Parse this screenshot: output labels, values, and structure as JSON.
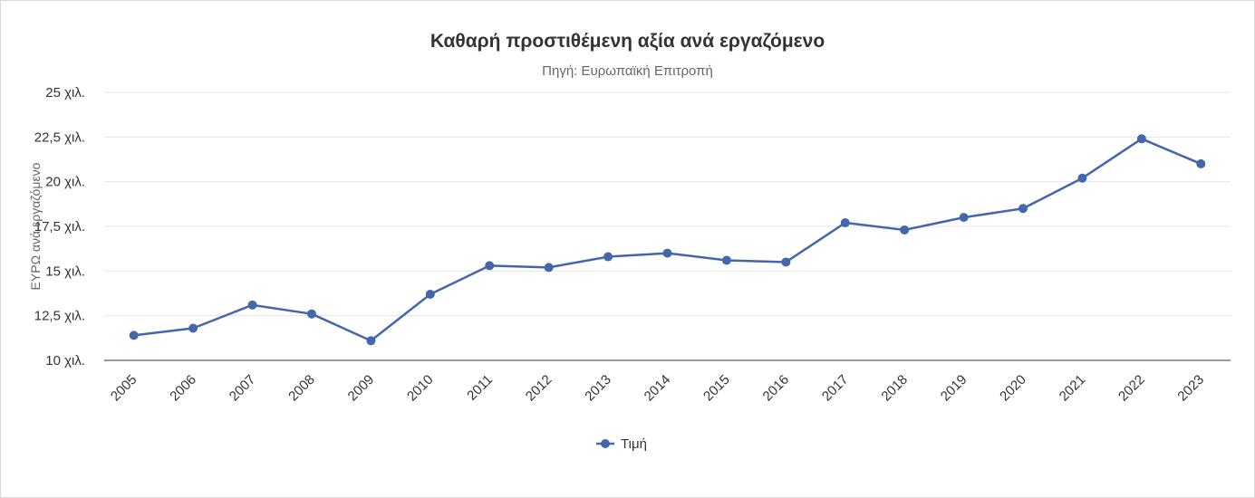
{
  "chart_data": {
    "type": "line",
    "title": "Καθαρή προστιθέμενη αξία ανά εργαζόμενο",
    "subtitle": "Πηγή: Ευρωπαϊκή Επιτροπή",
    "ylabel": "ΕΥΡΩ ανά εργαζόμενο",
    "xlabel": "",
    "categories": [
      "2005",
      "2006",
      "2007",
      "2008",
      "2009",
      "2010",
      "2011",
      "2012",
      "2013",
      "2014",
      "2015",
      "2016",
      "2017",
      "2018",
      "2019",
      "2020",
      "2021",
      "2022",
      "2023"
    ],
    "series": [
      {
        "name": "Τιμή",
        "color": "#4466aa",
        "values": [
          11.4,
          11.8,
          13.1,
          12.6,
          11.1,
          13.7,
          15.3,
          15.2,
          15.8,
          16.0,
          15.6,
          15.5,
          17.7,
          17.3,
          18.0,
          18.5,
          20.2,
          22.4,
          21.0
        ]
      }
    ],
    "ylim": [
      10,
      25
    ],
    "yticks": [
      10,
      12.5,
      15,
      17.5,
      20,
      22.5,
      25
    ],
    "ytick_labels": [
      "10 χιλ.",
      "12,5 χιλ.",
      "15 χιλ.",
      "17,5 χιλ.",
      "20 χιλ.",
      "22,5 χιλ.",
      "25 χιλ."
    ],
    "grid": true,
    "legend": "bottom-center"
  }
}
